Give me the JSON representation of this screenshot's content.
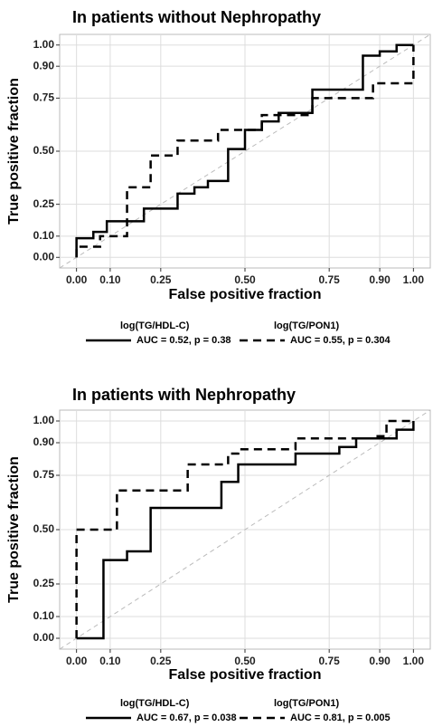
{
  "chart_data": [
    {
      "type": "line",
      "title": "In patients without Nephropathy",
      "xlabel": "False positive fraction",
      "ylabel": "True positive fraction",
      "xlim": [
        -0.05,
        1.05
      ],
      "ylim": [
        -0.05,
        1.05
      ],
      "xticks": [
        {
          "value": 0,
          "label": "0.00"
        },
        {
          "value": 0.1,
          "label": "0.10"
        },
        {
          "value": 0.25,
          "label": "0.25"
        },
        {
          "value": 0.5,
          "label": "0.50"
        },
        {
          "value": 0.75,
          "label": "0.75"
        },
        {
          "value": 0.9,
          "label": "0.90"
        },
        {
          "value": 1,
          "label": "1.00"
        }
      ],
      "yticks": [
        {
          "value": 0,
          "label": "0.00"
        },
        {
          "value": 0.1,
          "label": "0.10"
        },
        {
          "value": 0.25,
          "label": "0.25"
        },
        {
          "value": 0.5,
          "label": "0.50"
        },
        {
          "value": 0.75,
          "label": "0.75"
        },
        {
          "value": 0.9,
          "label": "0.90"
        },
        {
          "value": 1,
          "label": "1.00"
        }
      ],
      "grid": true,
      "series": [
        {
          "name": "log(TG/HDL-C)",
          "auc": "AUC = 0.52, p = 0.38",
          "color": "#000000",
          "dash": "solid",
          "x": [
            0,
            0,
            0.05,
            0.05,
            0.09,
            0.09,
            0.2,
            0.2,
            0.3,
            0.3,
            0.35,
            0.35,
            0.39,
            0.39,
            0.45,
            0.45,
            0.5,
            0.5,
            0.55,
            0.55,
            0.6,
            0.6,
            0.7,
            0.7,
            0.85,
            0.85,
            0.9,
            0.9,
            0.95,
            0.95,
            1
          ],
          "values": [
            0,
            0.09,
            0.09,
            0.12,
            0.12,
            0.17,
            0.17,
            0.23,
            0.23,
            0.3,
            0.3,
            0.33,
            0.33,
            0.36,
            0.36,
            0.51,
            0.51,
            0.6,
            0.6,
            0.64,
            0.64,
            0.68,
            0.68,
            0.79,
            0.79,
            0.95,
            0.95,
            0.97,
            0.97,
            1,
            1
          ]
        },
        {
          "name": "log(TG/PON1)",
          "auc": "AUC = 0.55, p = 0.304",
          "color": "#000000",
          "dash": "dashed",
          "x": [
            0,
            0,
            0.07,
            0.07,
            0.15,
            0.15,
            0.22,
            0.22,
            0.3,
            0.3,
            0.42,
            0.42,
            0.55,
            0.55,
            0.7,
            0.7,
            0.88,
            0.88,
            1,
            1
          ],
          "values": [
            0,
            0.05,
            0.05,
            0.1,
            0.1,
            0.33,
            0.33,
            0.48,
            0.48,
            0.55,
            0.55,
            0.6,
            0.6,
            0.67,
            0.67,
            0.75,
            0.75,
            0.82,
            0.82,
            1
          ]
        }
      ]
    },
    {
      "type": "line",
      "title": "In patients with Nephropathy",
      "xlabel": "False positive fraction",
      "ylabel": "True positive fraction",
      "xlim": [
        -0.05,
        1.05
      ],
      "ylim": [
        -0.05,
        1.05
      ],
      "xticks": [
        {
          "value": 0,
          "label": "0.00"
        },
        {
          "value": 0.1,
          "label": "0.10"
        },
        {
          "value": 0.25,
          "label": "0.25"
        },
        {
          "value": 0.5,
          "label": "0.50"
        },
        {
          "value": 0.75,
          "label": "0.75"
        },
        {
          "value": 0.9,
          "label": "0.90"
        },
        {
          "value": 1,
          "label": "1.00"
        }
      ],
      "yticks": [
        {
          "value": 0,
          "label": "0.00"
        },
        {
          "value": 0.1,
          "label": "0.10"
        },
        {
          "value": 0.25,
          "label": "0.25"
        },
        {
          "value": 0.5,
          "label": "0.50"
        },
        {
          "value": 0.75,
          "label": "0.75"
        },
        {
          "value": 0.9,
          "label": "0.90"
        },
        {
          "value": 1,
          "label": "1.00"
        }
      ],
      "grid": true,
      "series": [
        {
          "name": "log(TG/HDL-C)",
          "auc": "AUC = 0.67, p = 0.038",
          "color": "#000000",
          "dash": "solid",
          "x": [
            0,
            0.08,
            0.08,
            0.15,
            0.15,
            0.22,
            0.22,
            0.43,
            0.43,
            0.48,
            0.48,
            0.65,
            0.65,
            0.78,
            0.78,
            0.83,
            0.83,
            0.95,
            0.95,
            1,
            1
          ],
          "values": [
            0,
            0,
            0.36,
            0.36,
            0.4,
            0.4,
            0.6,
            0.6,
            0.72,
            0.72,
            0.8,
            0.8,
            0.85,
            0.85,
            0.88,
            0.88,
            0.92,
            0.92,
            0.96,
            0.96,
            1
          ]
        },
        {
          "name": "log(TG/PON1)",
          "auc": "AUC = 0.81, p = 0.005",
          "color": "#000000",
          "dash": "dashed",
          "x": [
            0,
            0,
            0.12,
            0.12,
            0.33,
            0.33,
            0.45,
            0.45,
            0.48,
            0.48,
            0.65,
            0.65,
            0.88,
            0.88,
            0.92,
            0.92,
            1
          ],
          "values": [
            0,
            0.5,
            0.5,
            0.68,
            0.68,
            0.8,
            0.8,
            0.85,
            0.85,
            0.87,
            0.87,
            0.92,
            0.92,
            0.93,
            0.93,
            1,
            1
          ]
        }
      ]
    }
  ]
}
